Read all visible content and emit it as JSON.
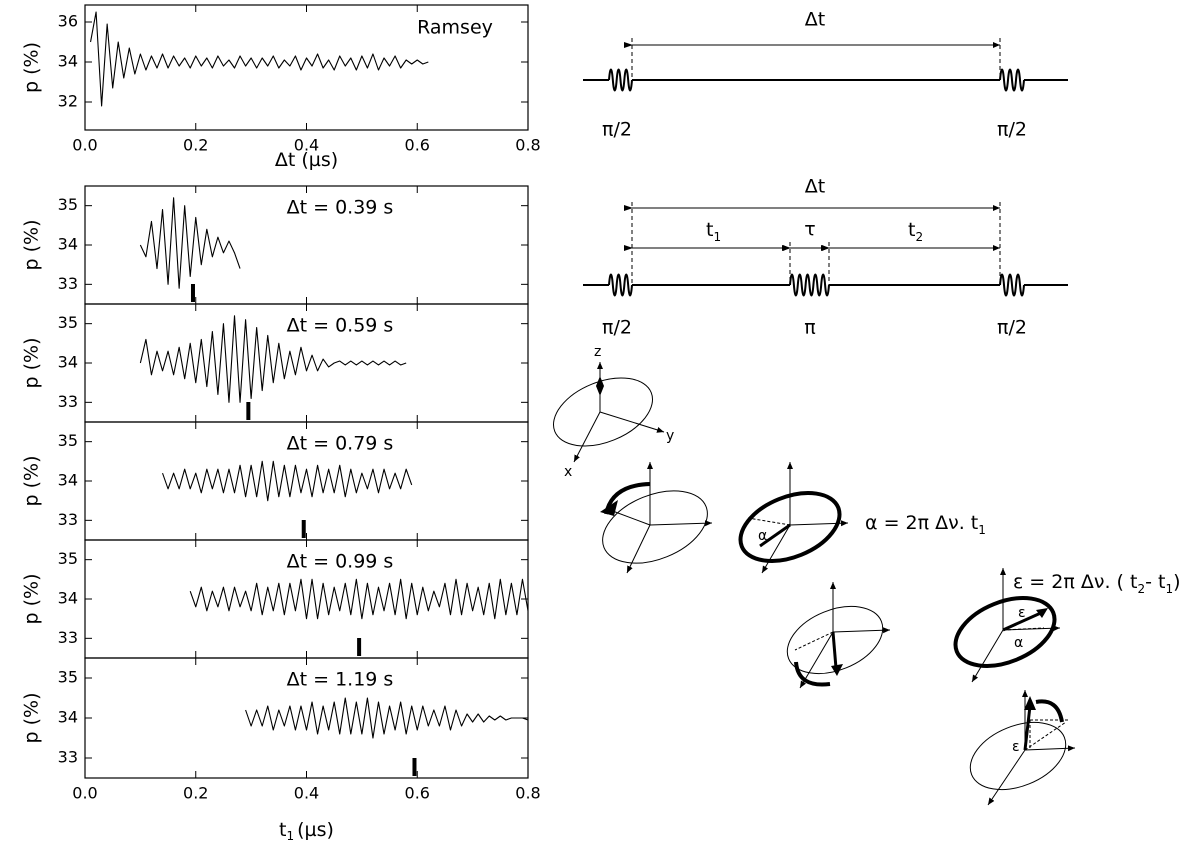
{
  "chart_data": [
    {
      "type": "line",
      "annotation": "Ramsey",
      "xlabel": "Δt (µs)",
      "ylabel": "p (%)",
      "xlim": [
        0,
        0.8
      ],
      "ylim": [
        30.6,
        36.85
      ],
      "xticks": [
        {
          "value": 0,
          "label": "0.0"
        },
        {
          "value": 0.2,
          "label": "0.2"
        },
        {
          "value": 0.4,
          "label": "0.4"
        },
        {
          "value": 0.6,
          "label": "0.6"
        },
        {
          "value": 0.8,
          "label": "0.8"
        }
      ],
      "yticks": [
        32,
        34,
        36
      ],
      "color": "#000000",
      "x": [
        0.01,
        0.02,
        0.03,
        0.04,
        0.05,
        0.06,
        0.07,
        0.08,
        0.09,
        0.1,
        0.11,
        0.12,
        0.13,
        0.14,
        0.15,
        0.16,
        0.17,
        0.18,
        0.19,
        0.2,
        0.21,
        0.22,
        0.23,
        0.24,
        0.25,
        0.26,
        0.27,
        0.28,
        0.29,
        0.3,
        0.31,
        0.32,
        0.33,
        0.34,
        0.35,
        0.36,
        0.37,
        0.38,
        0.39,
        0.4,
        0.41,
        0.42,
        0.43,
        0.44,
        0.45,
        0.46,
        0.47,
        0.48,
        0.49,
        0.5,
        0.51,
        0.52,
        0.53,
        0.54,
        0.55,
        0.56,
        0.57,
        0.58,
        0.59,
        0.6,
        0.61,
        0.62
      ],
      "values": [
        35.0,
        36.5,
        31.8,
        35.9,
        32.7,
        35.0,
        33.2,
        34.7,
        33.4,
        34.4,
        33.6,
        34.3,
        33.7,
        34.4,
        33.7,
        34.3,
        33.8,
        34.2,
        33.7,
        34.3,
        33.8,
        34.2,
        33.7,
        34.3,
        33.8,
        34.1,
        33.7,
        34.3,
        33.8,
        34.2,
        33.7,
        34.2,
        33.8,
        34.3,
        33.7,
        34.1,
        33.8,
        34.3,
        33.6,
        34.2,
        33.8,
        34.4,
        33.7,
        34.1,
        33.6,
        34.3,
        33.8,
        34.2,
        33.6,
        34.3,
        33.7,
        34.4,
        33.6,
        34.2,
        33.8,
        34.3,
        33.7,
        34.1,
        33.9,
        34.1,
        33.9,
        34.0
      ]
    },
    {
      "type": "line",
      "annotation": "Δt = 0.39  s",
      "ylabel": "p (%)",
      "xlim": [
        0,
        0.8
      ],
      "ylim": [
        32.5,
        35.5
      ],
      "xticks": [
        0,
        0.2,
        0.4,
        0.6,
        0.8
      ],
      "yticks": [
        33,
        34,
        35
      ],
      "color": "#000000",
      "marker_x": 0.195,
      "x": [
        0.1,
        0.11,
        0.12,
        0.13,
        0.14,
        0.15,
        0.16,
        0.17,
        0.18,
        0.19,
        0.2,
        0.21,
        0.22,
        0.23,
        0.24,
        0.25,
        0.26,
        0.27,
        0.28
      ],
      "values": [
        34.0,
        33.7,
        34.6,
        33.4,
        34.9,
        33.0,
        35.2,
        32.9,
        35.0,
        33.2,
        34.7,
        33.5,
        34.4,
        33.7,
        34.2,
        33.8,
        34.1,
        33.8,
        33.4
      ]
    },
    {
      "type": "line",
      "annotation": "Δt = 0.59  s",
      "ylabel": "p (%)",
      "xlim": [
        0,
        0.8
      ],
      "ylim": [
        32.5,
        35.5
      ],
      "xticks": [
        0,
        0.2,
        0.4,
        0.6,
        0.8
      ],
      "yticks": [
        33,
        34,
        35
      ],
      "color": "#000000",
      "marker_x": 0.295,
      "x": [
        0.1,
        0.11,
        0.12,
        0.13,
        0.14,
        0.15,
        0.16,
        0.17,
        0.18,
        0.19,
        0.2,
        0.21,
        0.22,
        0.23,
        0.24,
        0.25,
        0.26,
        0.27,
        0.28,
        0.29,
        0.3,
        0.31,
        0.32,
        0.33,
        0.34,
        0.35,
        0.36,
        0.37,
        0.38,
        0.39,
        0.4,
        0.41,
        0.42,
        0.43,
        0.44,
        0.45,
        0.46,
        0.47,
        0.48,
        0.49,
        0.5,
        0.51,
        0.52,
        0.53,
        0.54,
        0.55,
        0.56,
        0.57,
        0.58
      ],
      "values": [
        34.0,
        34.6,
        33.7,
        34.3,
        33.8,
        34.3,
        33.7,
        34.4,
        33.6,
        34.5,
        33.5,
        34.6,
        33.4,
        34.8,
        33.2,
        35.0,
        33.0,
        35.2,
        33.0,
        35.1,
        33.1,
        34.9,
        33.3,
        34.7,
        33.5,
        34.5,
        33.6,
        34.3,
        33.7,
        34.4,
        33.8,
        34.2,
        33.8,
        34.1,
        33.9,
        34.0,
        34.05,
        33.95,
        34.05,
        33.95,
        34.05,
        33.95,
        34.05,
        33.95,
        34.05,
        33.95,
        34.05,
        33.95,
        34.0
      ]
    },
    {
      "type": "line",
      "annotation": "Δt = 0.79  s",
      "ylabel": "p (%)",
      "xlim": [
        0,
        0.8
      ],
      "ylim": [
        32.5,
        35.5
      ],
      "xticks": [
        0,
        0.2,
        0.4,
        0.6,
        0.8
      ],
      "yticks": [
        33,
        34,
        35
      ],
      "color": "#000000",
      "marker_x": 0.395,
      "x": [
        0.14,
        0.15,
        0.16,
        0.17,
        0.18,
        0.19,
        0.2,
        0.21,
        0.22,
        0.23,
        0.24,
        0.25,
        0.26,
        0.27,
        0.28,
        0.29,
        0.3,
        0.31,
        0.32,
        0.33,
        0.34,
        0.35,
        0.36,
        0.37,
        0.38,
        0.39,
        0.4,
        0.41,
        0.42,
        0.43,
        0.44,
        0.45,
        0.46,
        0.47,
        0.48,
        0.49,
        0.5,
        0.51,
        0.52,
        0.53,
        0.54,
        0.55,
        0.56,
        0.57,
        0.58,
        0.59
      ],
      "values": [
        34.2,
        33.8,
        34.2,
        33.8,
        34.3,
        33.8,
        34.2,
        33.7,
        34.3,
        33.8,
        34.3,
        33.7,
        34.3,
        33.7,
        34.4,
        33.6,
        34.4,
        33.6,
        34.5,
        33.5,
        34.5,
        33.6,
        34.4,
        33.6,
        34.4,
        33.7,
        34.3,
        33.6,
        34.4,
        33.7,
        34.3,
        33.7,
        34.4,
        33.6,
        34.3,
        33.7,
        34.2,
        33.8,
        34.3,
        33.7,
        34.3,
        33.8,
        34.2,
        33.8,
        34.3,
        33.9
      ]
    },
    {
      "type": "line",
      "annotation": "Δt = 0.99  s",
      "ylabel": "p (%)",
      "xlim": [
        0,
        0.8
      ],
      "ylim": [
        32.5,
        35.5
      ],
      "xticks": [
        0,
        0.2,
        0.4,
        0.6,
        0.8
      ],
      "yticks": [
        33,
        34,
        35
      ],
      "color": "#000000",
      "marker_x": 0.495,
      "x": [
        0.19,
        0.2,
        0.21,
        0.22,
        0.23,
        0.24,
        0.25,
        0.26,
        0.27,
        0.28,
        0.29,
        0.3,
        0.31,
        0.32,
        0.33,
        0.34,
        0.35,
        0.36,
        0.37,
        0.38,
        0.39,
        0.4,
        0.41,
        0.42,
        0.43,
        0.44,
        0.45,
        0.46,
        0.47,
        0.48,
        0.49,
        0.5,
        0.51,
        0.52,
        0.53,
        0.54,
        0.55,
        0.56,
        0.57,
        0.58,
        0.59,
        0.6,
        0.61,
        0.62,
        0.63,
        0.64,
        0.65,
        0.66,
        0.67,
        0.68,
        0.69,
        0.7,
        0.71,
        0.72,
        0.73,
        0.74,
        0.75,
        0.76,
        0.77,
        0.78,
        0.79,
        0.8
      ],
      "values": [
        34.2,
        33.8,
        34.3,
        33.7,
        34.2,
        33.8,
        34.3,
        33.7,
        34.3,
        33.8,
        34.2,
        33.7,
        34.4,
        33.6,
        34.3,
        33.7,
        34.4,
        33.6,
        34.4,
        33.7,
        34.5,
        33.5,
        34.5,
        33.5,
        34.4,
        33.6,
        34.3,
        33.7,
        34.4,
        33.6,
        34.5,
        33.5,
        34.4,
        33.6,
        34.3,
        33.7,
        34.4,
        33.6,
        34.5,
        33.5,
        34.4,
        33.6,
        34.3,
        33.7,
        34.2,
        33.8,
        34.4,
        33.6,
        34.5,
        33.6,
        34.4,
        33.7,
        34.3,
        33.6,
        34.4,
        33.5,
        34.5,
        33.6,
        34.4,
        33.6,
        34.5,
        33.7
      ]
    },
    {
      "type": "line",
      "annotation": "Δt = 1.19  s",
      "xlabel": "t",
      "xlabel_sub": "1",
      "xlabel_rest": "(µs)",
      "ylabel": "p (%)",
      "xlim": [
        0,
        0.8
      ],
      "ylim": [
        32.5,
        35.5
      ],
      "xticks": [
        {
          "value": 0,
          "label": "0.0"
        },
        {
          "value": 0.2,
          "label": "0.2"
        },
        {
          "value": 0.4,
          "label": "0.4"
        },
        {
          "value": 0.6,
          "label": "0.6"
        },
        {
          "value": 0.8,
          "label": "0.8"
        }
      ],
      "yticks": [
        33,
        34,
        35
      ],
      "color": "#000000",
      "marker_x": 0.595,
      "x": [
        0.29,
        0.3,
        0.31,
        0.32,
        0.33,
        0.34,
        0.35,
        0.36,
        0.37,
        0.38,
        0.39,
        0.4,
        0.41,
        0.42,
        0.43,
        0.44,
        0.45,
        0.46,
        0.47,
        0.48,
        0.49,
        0.5,
        0.51,
        0.52,
        0.53,
        0.54,
        0.55,
        0.56,
        0.57,
        0.58,
        0.59,
        0.6,
        0.61,
        0.62,
        0.63,
        0.64,
        0.65,
        0.66,
        0.67,
        0.68,
        0.69,
        0.7,
        0.71,
        0.72,
        0.73,
        0.74,
        0.75,
        0.76,
        0.77,
        0.78,
        0.79,
        0.8
      ],
      "values": [
        34.2,
        33.8,
        34.2,
        33.8,
        34.3,
        33.7,
        34.2,
        33.8,
        34.3,
        33.7,
        34.3,
        33.7,
        34.4,
        33.6,
        34.3,
        33.7,
        34.4,
        33.6,
        34.5,
        33.6,
        34.4,
        33.6,
        34.5,
        33.5,
        34.4,
        33.6,
        34.3,
        33.7,
        34.4,
        33.6,
        34.3,
        33.7,
        34.3,
        33.8,
        34.2,
        33.8,
        34.3,
        33.7,
        34.2,
        33.8,
        34.1,
        33.9,
        34.1,
        33.9,
        34.05,
        33.95,
        34.05,
        33.95,
        34.0,
        34.0,
        34.0,
        33.95
      ]
    }
  ],
  "diagram": {
    "sequence1": {
      "delta_t": "Δt",
      "pulse_start": "π/2",
      "pulse_end": "π/2"
    },
    "sequence2": {
      "delta_t": "Δt",
      "t1": "t",
      "t1_sub": "1",
      "tau": "τ",
      "t2": "t",
      "t2_sub": "2",
      "pulse_start": "π/2",
      "pulse_mid": "π",
      "pulse_end": "π/2"
    },
    "bloch": {
      "z": "z",
      "y": "y",
      "x": "x",
      "alpha_formula": "α = 2π Δν. t",
      "alpha_formula_sub": "1",
      "alpha": "α",
      "epsilon_formula": "ε = 2π Δν. ( t",
      "epsilon_formula_sub1": "2",
      "epsilon_formula_mid": "- t",
      "epsilon_formula_sub2": "1",
      "epsilon_formula_end": ")",
      "epsilon": "ε",
      "alpha2": "α",
      "epsilon2": "ε"
    }
  }
}
